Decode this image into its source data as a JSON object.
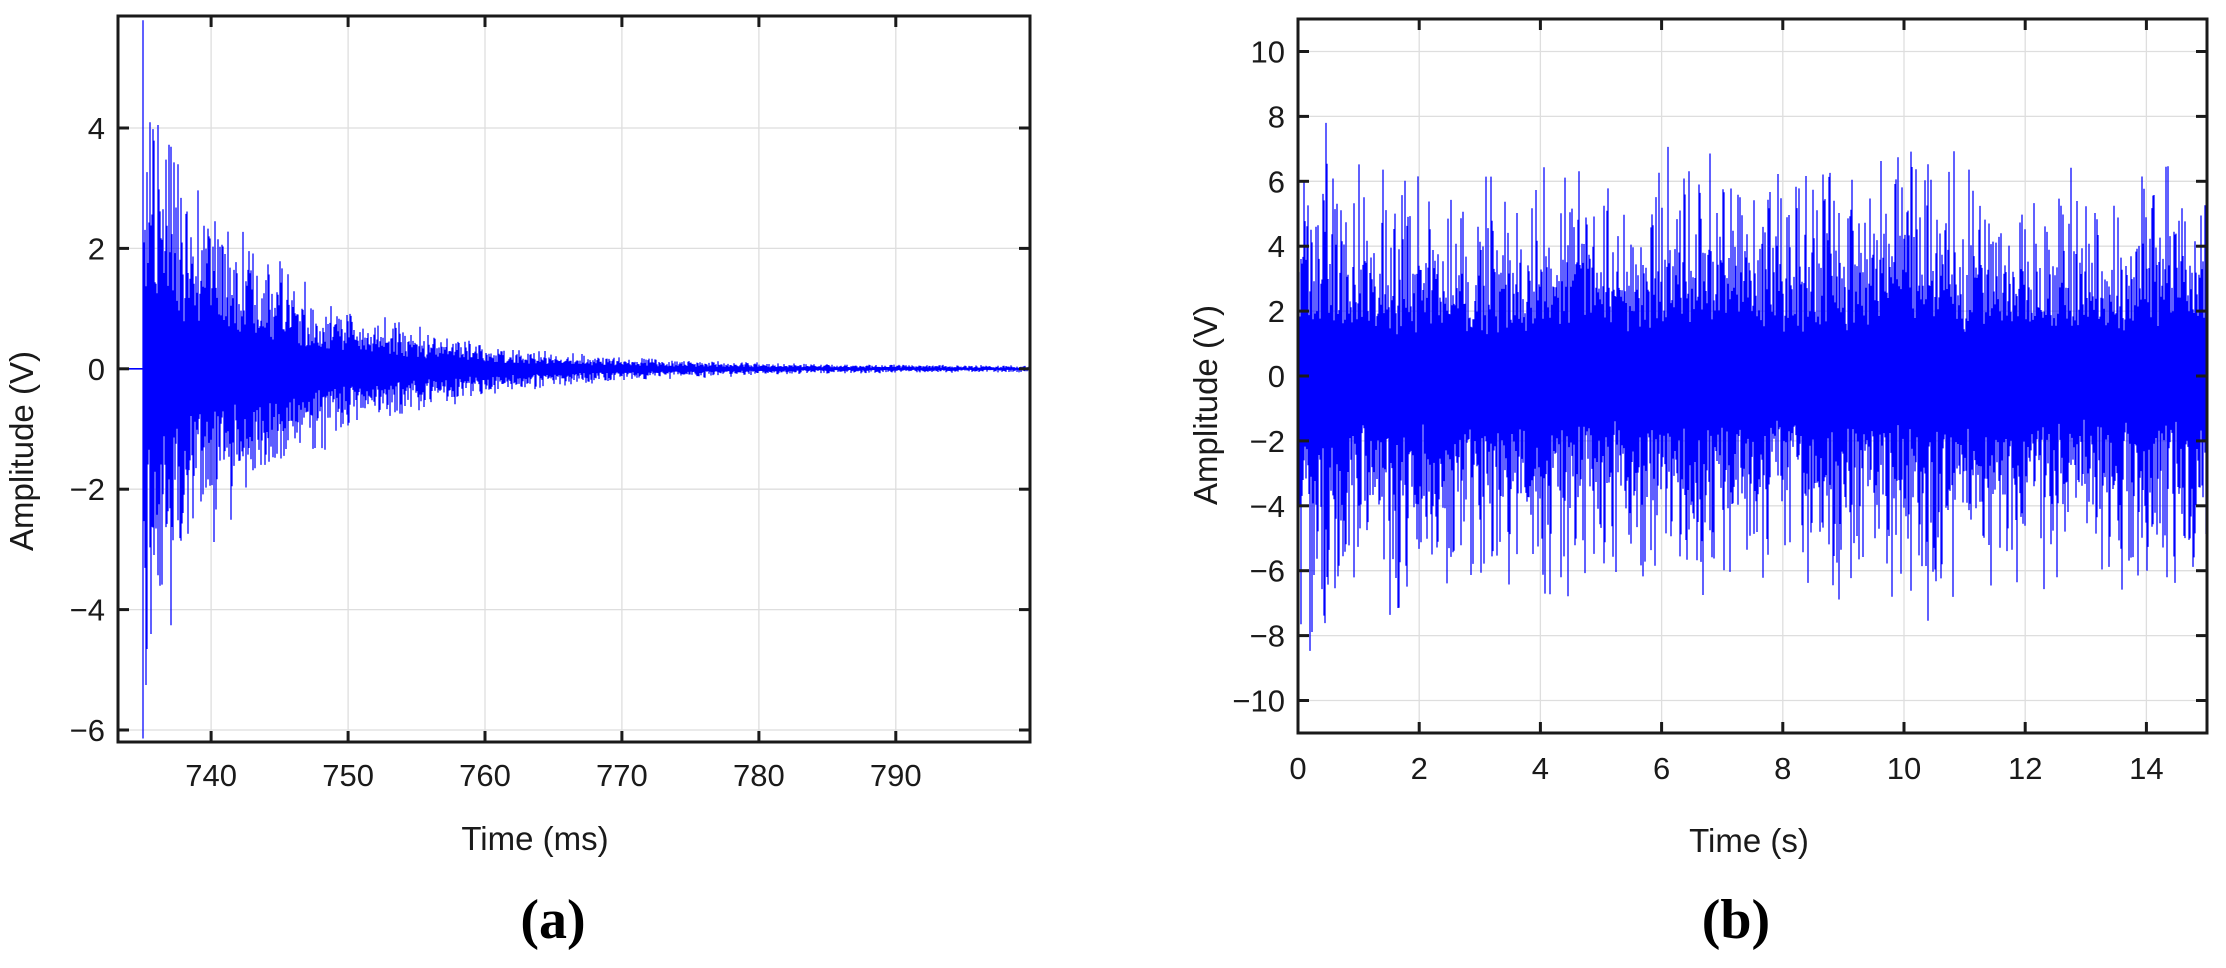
{
  "figure": {
    "background": "#ffffff",
    "description": "Two-panel scientific figure of measured voltage waveforms: (a) a decaying impulsive burst versus time in milliseconds, (b) a stationary noisy signal versus time in seconds."
  },
  "chart_data": [
    {
      "type": "line",
      "panel": "a",
      "caption": "(a)",
      "title": "",
      "xlabel": "Time (ms)",
      "ylabel": "Amplitude (V)",
      "xlim": [
        733.2,
        799.8
      ],
      "ylim": [
        -6.2,
        5.86
      ],
      "xticks": [
        740,
        750,
        760,
        770,
        780,
        790
      ],
      "yticks": [
        4,
        2,
        0,
        -2,
        -4,
        -6
      ],
      "grid": true,
      "legend": null,
      "line_color": "#0000FF",
      "axis_color": "#1a1a1a",
      "grid_color": "#dedede",
      "tick_label_color": "#1a1a1a",
      "description": "Impulsive burst starting near 735 ms with peaks of about +5.5 V and -6 V, decaying exponentially to near 0 V by about 770 ms; flat zero baseline before onset and thin residual noise afterwards.",
      "signal": {
        "kind": "decaying-noise-burst",
        "onset_x": 735.0,
        "baseline": 0,
        "peak_positive": 5.5,
        "peak_negative": -6.0,
        "seed": 20210735,
        "envelope_upper": [
          [
            735.0,
            5.9
          ],
          [
            735.3,
            4.6
          ],
          [
            735.8,
            5.55
          ],
          [
            736.4,
            4.2
          ],
          [
            737.0,
            4.45
          ],
          [
            737.7,
            3.2
          ],
          [
            738.5,
            2.95
          ],
          [
            739.3,
            3.1
          ],
          [
            739.8,
            4.35
          ],
          [
            740.4,
            2.7
          ],
          [
            741.2,
            2.3
          ],
          [
            742.0,
            2.2
          ],
          [
            742.8,
            2.55
          ],
          [
            743.6,
            1.95
          ],
          [
            744.6,
            1.8
          ],
          [
            745.4,
            2.1
          ],
          [
            746.5,
            1.55
          ],
          [
            748.0,
            1.4
          ],
          [
            750.0,
            1.15
          ],
          [
            752.0,
            0.95
          ],
          [
            754.0,
            0.8
          ],
          [
            756.0,
            0.66
          ],
          [
            758.0,
            0.55
          ],
          [
            760.0,
            0.45
          ],
          [
            762.5,
            0.37
          ],
          [
            765.0,
            0.3
          ],
          [
            768.0,
            0.24
          ],
          [
            771.0,
            0.19
          ],
          [
            774.0,
            0.15
          ],
          [
            778.0,
            0.12
          ],
          [
            782.0,
            0.1
          ],
          [
            787.0,
            0.08
          ],
          [
            793.0,
            0.07
          ],
          [
            799.8,
            0.06
          ]
        ],
        "envelope_lower": [
          [
            735.0,
            6.2
          ],
          [
            735.4,
            5.3
          ],
          [
            735.9,
            5.6
          ],
          [
            736.6,
            4.1
          ],
          [
            737.3,
            4.4
          ],
          [
            738.1,
            3.4
          ],
          [
            739.0,
            2.9
          ],
          [
            739.9,
            3.3
          ],
          [
            740.7,
            2.6
          ],
          [
            741.6,
            2.5
          ],
          [
            742.6,
            2.3
          ],
          [
            743.7,
            2.0
          ],
          [
            745.0,
            1.9
          ],
          [
            746.2,
            1.6
          ],
          [
            748.0,
            1.45
          ],
          [
            750.0,
            1.2
          ],
          [
            752.0,
            1.0
          ],
          [
            754.0,
            0.85
          ],
          [
            756.0,
            0.7
          ],
          [
            758.0,
            0.58
          ],
          [
            760.0,
            0.48
          ],
          [
            763.0,
            0.38
          ],
          [
            766.0,
            0.3
          ],
          [
            769.0,
            0.24
          ],
          [
            772.0,
            0.19
          ],
          [
            776.0,
            0.15
          ],
          [
            780.0,
            0.12
          ],
          [
            785.0,
            0.09
          ],
          [
            791.0,
            0.07
          ],
          [
            799.8,
            0.06
          ]
        ]
      }
    },
    {
      "type": "line",
      "panel": "b",
      "caption": "(b)",
      "title": "",
      "xlabel": "Time (s)",
      "ylabel": "Amplitude (V)",
      "xlim": [
        0,
        15
      ],
      "ylim": [
        -11,
        11
      ],
      "xticks": [
        0,
        2,
        4,
        6,
        8,
        10,
        12,
        14
      ],
      "yticks": [
        10,
        8,
        6,
        4,
        2,
        0,
        -2,
        -4,
        -6,
        -8,
        -10
      ],
      "grid": true,
      "legend": null,
      "line_color": "#0000FF",
      "axis_color": "#1a1a1a",
      "grid_color": "#dedede",
      "tick_label_color": "#1a1a1a",
      "description": "Stationary broadband noisy signal over 0-15 s; dense core within roughly +/-2 V with frequent excursions to +/-6-8 V, maximum spikes near +8.5 V (~0.5 s) and -9.3 V (~0.45 s).",
      "signal": {
        "kind": "stationary-noise",
        "baseline": 0,
        "peak_positive": 8.5,
        "peak_negative": -9.3,
        "core_band": 2.0,
        "seed": 20210015,
        "envelope_upper": [
          [
            0,
            7.0
          ],
          [
            0.3,
            6.6
          ],
          [
            0.5,
            8.6
          ],
          [
            0.8,
            6.4
          ],
          [
            1.2,
            7.3
          ],
          [
            1.6,
            6.1
          ],
          [
            2.0,
            6.6
          ],
          [
            2.4,
            5.7
          ],
          [
            2.8,
            6.3
          ],
          [
            3.2,
            6.2
          ],
          [
            3.6,
            5.9
          ],
          [
            4.0,
            7.1
          ],
          [
            4.4,
            6.4
          ],
          [
            4.8,
            6.9
          ],
          [
            5.2,
            6.2
          ],
          [
            5.6,
            6.4
          ],
          [
            6.0,
            7.7
          ],
          [
            6.4,
            6.9
          ],
          [
            6.8,
            7.2
          ],
          [
            7.2,
            7.5
          ],
          [
            7.6,
            7.1
          ],
          [
            8.0,
            6.5
          ],
          [
            8.4,
            6.3
          ],
          [
            8.8,
            6.6
          ],
          [
            9.2,
            6.7
          ],
          [
            9.6,
            7.0
          ],
          [
            10.0,
            8.0
          ],
          [
            10.2,
            8.2
          ],
          [
            10.5,
            7.7
          ],
          [
            11.0,
            6.8
          ],
          [
            11.5,
            6.2
          ],
          [
            12.0,
            6.1
          ],
          [
            12.5,
            6.3
          ],
          [
            13.0,
            6.7
          ],
          [
            13.5,
            6.1
          ],
          [
            13.9,
            7.6
          ],
          [
            14.3,
            7.3
          ],
          [
            14.6,
            6.3
          ],
          [
            15.0,
            6.6
          ]
        ],
        "envelope_lower": [
          [
            0,
            8.4
          ],
          [
            0.45,
            9.4
          ],
          [
            0.9,
            6.6
          ],
          [
            1.4,
            7.9
          ],
          [
            1.9,
            6.8
          ],
          [
            2.4,
            7.1
          ],
          [
            2.9,
            6.1
          ],
          [
            3.4,
            6.7
          ],
          [
            3.9,
            7.4
          ],
          [
            4.1,
            8.7
          ],
          [
            4.6,
            6.4
          ],
          [
            5.1,
            6.3
          ],
          [
            5.6,
            6.7
          ],
          [
            6.1,
            6.4
          ],
          [
            6.6,
            6.7
          ],
          [
            7.1,
            7.9
          ],
          [
            7.6,
            6.6
          ],
          [
            8.1,
            6.1
          ],
          [
            8.6,
            6.6
          ],
          [
            8.9,
            8.8
          ],
          [
            9.4,
            6.5
          ],
          [
            9.9,
            7.3
          ],
          [
            10.3,
            8.9
          ],
          [
            10.8,
            7.4
          ],
          [
            11.3,
            7.3
          ],
          [
            11.8,
            6.4
          ],
          [
            12.3,
            6.6
          ],
          [
            12.8,
            6.1
          ],
          [
            13.3,
            6.3
          ],
          [
            13.8,
            6.9
          ],
          [
            14.3,
            6.5
          ],
          [
            14.7,
            7.0
          ],
          [
            15.0,
            7.2
          ]
        ]
      }
    }
  ]
}
